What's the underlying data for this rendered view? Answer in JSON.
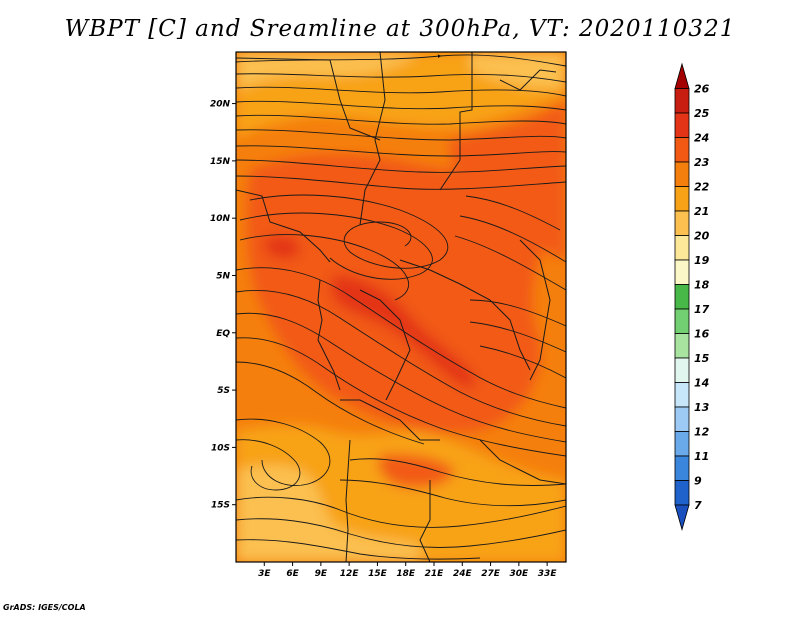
{
  "title": "WBPT [C] and Sreamline at 300hPa, VT: 2020110321",
  "credit": "GrADS: IGES/COLA",
  "map": {
    "lat_labels": [
      {
        "text": "20N",
        "lat": 20
      },
      {
        "text": "15N",
        "lat": 15
      },
      {
        "text": "10N",
        "lat": 10
      },
      {
        "text": "5N",
        "lat": 5
      },
      {
        "text": "EQ",
        "lat": 0
      },
      {
        "text": "5S",
        "lat": -5
      },
      {
        "text": "10S",
        "lat": -10
      },
      {
        "text": "15S",
        "lat": -15
      }
    ],
    "lon_labels": [
      {
        "text": "3E",
        "lon": 3
      },
      {
        "text": "6E",
        "lon": 6
      },
      {
        "text": "9E",
        "lon": 9
      },
      {
        "text": "12E",
        "lon": 12
      },
      {
        "text": "15E",
        "lon": 15
      },
      {
        "text": "18E",
        "lon": 18
      },
      {
        "text": "21E",
        "lon": 21
      },
      {
        "text": "24E",
        "lon": 24
      },
      {
        "text": "27E",
        "lon": 27
      },
      {
        "text": "30E",
        "lon": 30
      },
      {
        "text": "33E",
        "lon": 33
      }
    ],
    "lon_range": [
      0,
      35
    ],
    "lat_range": [
      -20,
      24.5
    ]
  },
  "colorbar": {
    "labels": [
      "26",
      "25",
      "24",
      "23",
      "22",
      "21",
      "20",
      "19",
      "18",
      "17",
      "16",
      "15",
      "14",
      "13",
      "12",
      "11",
      "9",
      "7"
    ],
    "colors": [
      "#a50000",
      "#c81e12",
      "#e33418",
      "#f25a14",
      "#f57f0d",
      "#f8a218",
      "#fbc050",
      "#fde89a",
      "#fcf7c6",
      "#48b848",
      "#72d072",
      "#a8e4a0",
      "#e2f6f0",
      "#c8e6fa",
      "#9ccaf4",
      "#6aaaea",
      "#3a86dc",
      "#1f62cc",
      "#1a4fbe"
    ]
  },
  "colors": {
    "background": "#ffffff",
    "field_base": "#f57f0d",
    "field_warm": "#f25a14",
    "field_hot": "#e33418",
    "field_cool": "#f8a218",
    "field_coolest": "#fbc050",
    "line": "#1a1a1a"
  }
}
